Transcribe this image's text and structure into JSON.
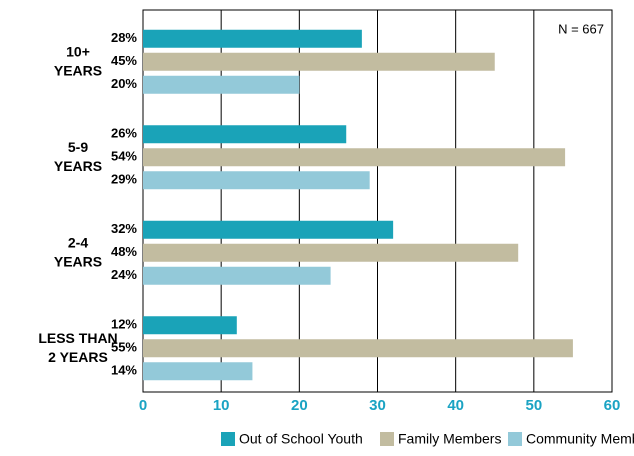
{
  "chart_data": {
    "type": "hbar",
    "categories": [
      "10+\nYEARS",
      "5-9\nYEARS",
      "2-4\nYEARS",
      "LESS THAN\n2 YEARS"
    ],
    "series": [
      {
        "name": "Out of School Youth",
        "color": "#1aa3b8",
        "values": [
          28,
          26,
          32,
          12
        ],
        "value_labels": [
          "28%",
          "26%",
          "32%",
          "12%"
        ]
      },
      {
        "name": "Family Members",
        "color": "#c2bca0",
        "values": [
          45,
          54,
          48,
          55
        ],
        "value_labels": [
          "45%",
          "54%",
          "48%",
          "55%"
        ]
      },
      {
        "name": "Community Members",
        "color": "#93c9d9",
        "values": [
          20,
          29,
          24,
          14
        ],
        "value_labels": [
          "20%",
          "29%",
          "24%",
          "14%"
        ]
      }
    ],
    "xlim": [
      0,
      60
    ],
    "xticks": [
      0,
      10,
      20,
      30,
      40,
      50,
      60
    ],
    "grid": true,
    "annotation": "N = 667",
    "legend": "bottom"
  }
}
